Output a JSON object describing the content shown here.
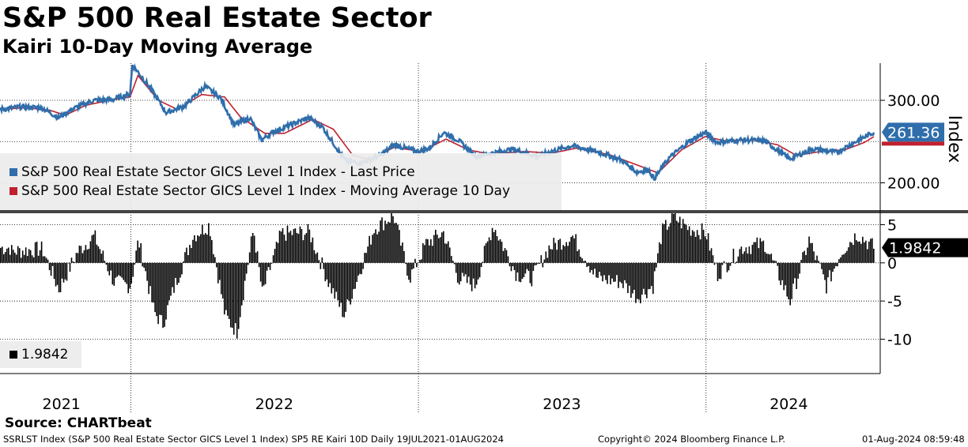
{
  "title": "S&P 500 Real Estate Sector",
  "subtitle": "Kairi 10-Day Moving Average",
  "source": "Source: CHARTbeat",
  "footer": {
    "left": "SSRLST Index (S&P 500 Real Estate Sector GICS Level 1 Index) SP5 RE Kairi 10D  Daily 19JUL2021-01AUG2024",
    "center": "Copyright© 2024 Bloomberg Finance L.P.",
    "right": "01-Aug-2024 08:59:48"
  },
  "colors": {
    "price": "#2f6eab",
    "ma": "#c0202e",
    "bars": "#000000",
    "grid": "#000000"
  },
  "chart_data": [
    {
      "type": "line",
      "panel": "upper",
      "ylabel": "Index",
      "yticks": [
        "300.00",
        "200.00"
      ],
      "ylim": [
        167,
        345
      ],
      "last_value_label": "261.36",
      "x_category_labels": [
        "2021",
        "2022",
        "2023",
        "2024"
      ],
      "x_range": [
        "2021-07-19",
        "2024-08-01"
      ],
      "legend": {
        "price": "S&P 500 Real Estate Sector GICS Level 1 Index - Last Price",
        "ma": "S&P 500 Real Estate Sector GICS Level 1 Index - Moving Average 10 Day"
      },
      "series": [
        {
          "name": "Last Price",
          "points": [
            [
              "2021-07-19",
              289
            ],
            [
              "2021-08-15",
              292
            ],
            [
              "2021-09-10",
              291
            ],
            [
              "2021-10-01",
              279
            ],
            [
              "2021-10-20",
              290
            ],
            [
              "2021-11-15",
              300
            ],
            [
              "2021-12-10",
              301
            ],
            [
              "2021-12-31",
              308
            ],
            [
              "2022-01-03",
              343
            ],
            [
              "2022-01-25",
              316
            ],
            [
              "2022-02-15",
              285
            ],
            [
              "2022-03-10",
              293
            ],
            [
              "2022-04-05",
              317
            ],
            [
              "2022-04-25",
              303
            ],
            [
              "2022-05-12",
              270
            ],
            [
              "2022-06-01",
              279
            ],
            [
              "2022-06-16",
              252
            ],
            [
              "2022-07-01",
              262
            ],
            [
              "2022-08-15",
              279
            ],
            [
              "2022-09-01",
              268
            ],
            [
              "2022-09-30",
              227
            ],
            [
              "2022-10-20",
              224
            ],
            [
              "2022-11-15",
              234
            ],
            [
              "2022-12-01",
              246
            ],
            [
              "2022-12-31",
              238
            ],
            [
              "2023-01-15",
              242
            ],
            [
              "2023-02-02",
              261
            ],
            [
              "2023-02-20",
              252
            ],
            [
              "2023-03-15",
              232
            ],
            [
              "2023-04-05",
              236
            ],
            [
              "2023-05-01",
              241
            ],
            [
              "2023-06-01",
              232
            ],
            [
              "2023-06-15",
              237
            ],
            [
              "2023-07-15",
              245
            ],
            [
              "2023-08-15",
              238
            ],
            [
              "2023-09-15",
              228
            ],
            [
              "2023-10-05",
              213
            ],
            [
              "2023-10-20",
              216
            ],
            [
              "2023-10-27",
              205
            ],
            [
              "2023-11-15",
              230
            ],
            [
              "2023-12-10",
              250
            ],
            [
              "2023-12-31",
              261
            ],
            [
              "2024-01-15",
              249
            ],
            [
              "2024-02-15",
              252
            ],
            [
              "2024-03-15",
              251
            ],
            [
              "2024-04-16",
              229
            ],
            [
              "2024-05-15",
              241
            ],
            [
              "2024-06-15",
              237
            ],
            [
              "2024-07-15",
              253
            ],
            [
              "2024-08-01",
              261.36
            ]
          ]
        },
        {
          "name": "Moving Average 10 Day",
          "points": [
            [
              "2021-07-19",
              289
            ],
            [
              "2021-08-20",
              291
            ],
            [
              "2021-09-20",
              288
            ],
            [
              "2021-10-10",
              282
            ],
            [
              "2021-11-05",
              294
            ],
            [
              "2021-12-05",
              300
            ],
            [
              "2021-12-31",
              304
            ],
            [
              "2022-01-10",
              330
            ],
            [
              "2022-02-05",
              300
            ],
            [
              "2022-03-01",
              289
            ],
            [
              "2022-04-01",
              307
            ],
            [
              "2022-04-30",
              304
            ],
            [
              "2022-05-20",
              280
            ],
            [
              "2022-06-20",
              260
            ],
            [
              "2022-07-15",
              260
            ],
            [
              "2022-08-20",
              277
            ],
            [
              "2022-09-15",
              265
            ],
            [
              "2022-10-10",
              233
            ],
            [
              "2022-11-01",
              228
            ],
            [
              "2022-12-01",
              243
            ],
            [
              "2023-01-05",
              238
            ],
            [
              "2023-02-05",
              253
            ],
            [
              "2023-03-05",
              240
            ],
            [
              "2023-04-01",
              235
            ],
            [
              "2023-05-15",
              238
            ],
            [
              "2023-06-20",
              236
            ],
            [
              "2023-07-20",
              242
            ],
            [
              "2023-09-01",
              234
            ],
            [
              "2023-10-10",
              220
            ],
            [
              "2023-11-01",
              212
            ],
            [
              "2023-12-01",
              240
            ],
            [
              "2023-12-31",
              256
            ],
            [
              "2024-01-25",
              251
            ],
            [
              "2024-03-01",
              252
            ],
            [
              "2024-04-01",
              246
            ],
            [
              "2024-04-25",
              233
            ],
            [
              "2024-05-25",
              238
            ],
            [
              "2024-06-25",
              240
            ],
            [
              "2024-07-20",
              249
            ],
            [
              "2024-08-01",
              256
            ]
          ]
        }
      ]
    },
    {
      "type": "bar",
      "panel": "lower",
      "ylim": [
        -14.5,
        6.5
      ],
      "yticks": [
        "5",
        "0",
        "-5",
        "-10"
      ],
      "last_value_label": "1.9842",
      "legend": "1.9842",
      "series": [
        {
          "name": "Kairi 10D",
          "points": [
            [
              "2021-08-01",
              1.5
            ],
            [
              "2021-09-10",
              1.8
            ],
            [
              "2021-10-01",
              -3.5
            ],
            [
              "2021-10-25",
              1.5
            ],
            [
              "2021-11-15",
              3.5
            ],
            [
              "2021-12-10",
              -2.5
            ],
            [
              "2021-12-31",
              -3.0
            ],
            [
              "2022-01-10",
              3.0
            ],
            [
              "2022-01-30",
              -6.5
            ],
            [
              "2022-02-10",
              -8.0
            ],
            [
              "2022-02-25",
              -3.0
            ],
            [
              "2022-03-20",
              3.5
            ],
            [
              "2022-04-10",
              5.0
            ],
            [
              "2022-04-30",
              -7.0
            ],
            [
              "2022-05-15",
              -9.0
            ],
            [
              "2022-06-05",
              4.5
            ],
            [
              "2022-06-16",
              -4.0
            ],
            [
              "2022-07-10",
              3.8
            ],
            [
              "2022-08-15",
              4.0
            ],
            [
              "2022-09-10",
              -3.0
            ],
            [
              "2022-09-28",
              -6.8
            ],
            [
              "2022-10-15",
              -2.0
            ],
            [
              "2022-11-05",
              4.5
            ],
            [
              "2022-11-30",
              6.2
            ],
            [
              "2022-12-20",
              -2.0
            ],
            [
              "2023-01-10",
              2.5
            ],
            [
              "2023-02-01",
              4.0
            ],
            [
              "2023-02-20",
              -2.0
            ],
            [
              "2023-03-13",
              -3.0
            ],
            [
              "2023-04-05",
              5.0
            ],
            [
              "2023-05-05",
              -1.5
            ],
            [
              "2023-05-25",
              -2.0
            ],
            [
              "2023-06-15",
              2.0
            ],
            [
              "2023-07-15",
              3.5
            ],
            [
              "2023-08-15",
              -2.0
            ],
            [
              "2023-09-15",
              -2.5
            ],
            [
              "2023-10-05",
              -4.5
            ],
            [
              "2023-10-25",
              -3.0
            ],
            [
              "2023-11-05",
              4.0
            ],
            [
              "2023-11-20",
              6.0
            ],
            [
              "2023-12-10",
              4.5
            ],
            [
              "2023-12-31",
              4.0
            ],
            [
              "2024-01-15",
              -1.5
            ],
            [
              "2024-02-15",
              2.0
            ],
            [
              "2024-03-15",
              2.5
            ],
            [
              "2024-04-16",
              -5.0
            ],
            [
              "2024-05-10",
              3.0
            ],
            [
              "2024-06-01",
              -3.0
            ],
            [
              "2024-06-20",
              1.5
            ],
            [
              "2024-07-10",
              3.8
            ],
            [
              "2024-08-01",
              1.9842
            ]
          ]
        }
      ]
    }
  ]
}
